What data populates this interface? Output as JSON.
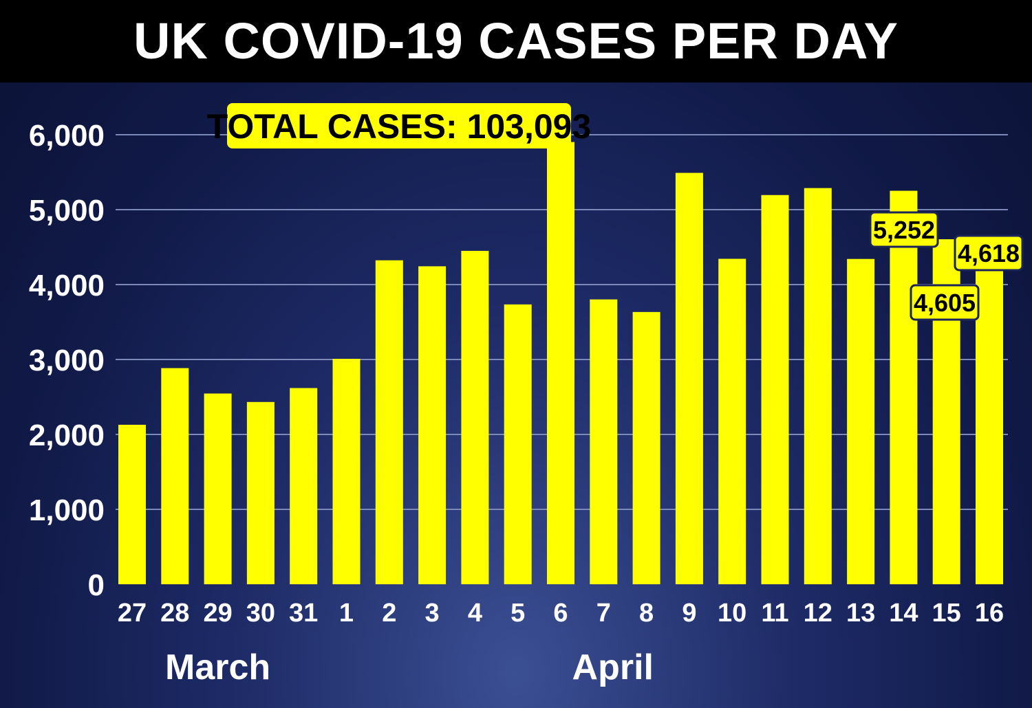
{
  "title": "UK COVID-19 CASES PER DAY",
  "total_label": "TOTAL CASES: 103,093",
  "colors": {
    "bar": "#ffff00",
    "background": "#16205a",
    "title_bg": "#000000",
    "text": "#ffffff"
  },
  "chart_data": {
    "type": "bar",
    "categories": [
      "27",
      "28",
      "29",
      "30",
      "31",
      "1",
      "2",
      "3",
      "4",
      "5",
      "6",
      "7",
      "8",
      "9",
      "10",
      "11",
      "12",
      "13",
      "14",
      "15",
      "16"
    ],
    "values": [
      2129,
      2885,
      2546,
      2433,
      2619,
      3009,
      4324,
      4244,
      4450,
      3735,
      5903,
      3802,
      3634,
      5491,
      4344,
      5195,
      5288,
      4342,
      5252,
      4605,
      4618
    ],
    "month_labels": [
      {
        "label": "March",
        "from": "27",
        "to": "31"
      },
      {
        "label": "April",
        "from": "1",
        "to": "16"
      }
    ],
    "yticks": [
      "0",
      "1,000",
      "2,000",
      "3,000",
      "4,000",
      "5,000",
      "6,000"
    ],
    "ylim": [
      0,
      6000
    ],
    "grid": true,
    "data_labels": [
      {
        "category": "14",
        "label": "5,252"
      },
      {
        "category": "15",
        "label": "4,605"
      },
      {
        "category": "16",
        "label": "4,618"
      }
    ],
    "title": "UK COVID-19 CASES PER DAY",
    "xlabel": "",
    "ylabel": ""
  }
}
